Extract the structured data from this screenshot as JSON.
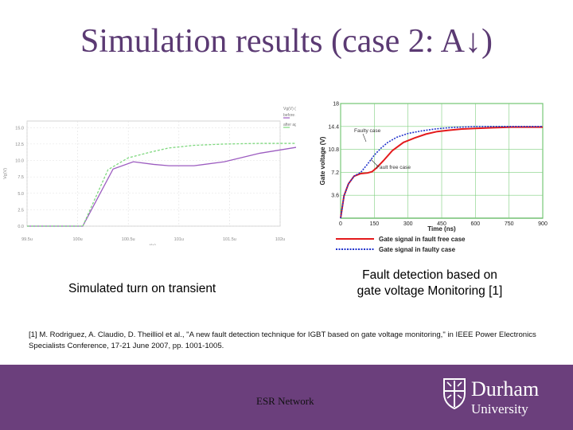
{
  "slide": {
    "title": "Simulation results (case 2: A↓)",
    "caption_left": "Simulated turn on transient",
    "caption_right_1": "Fault detection based on",
    "caption_right_2": "gate voltage Monitoring [1]",
    "reference_1": "[1] M. Rodriguez, A. Claudio, D. Theilliol et al., \"A new fault detection technique for IGBT based on gate voltage monitoring,\" in IEEE Power Electronics",
    "reference_2": "Specialists Conference, 17-21 June 2007, pp. 1001-1005.",
    "footer_text": "ESR Network",
    "logo_name": "Durham",
    "logo_sub": "University"
  },
  "chart_data": [
    {
      "type": "line",
      "xlabel": "t(s)",
      "ylabel": "Vg(V)",
      "xticks": [
        "99.5u",
        "100u",
        "100.5u",
        "101u",
        "101.5u",
        "102u"
      ],
      "yticks": [
        0.0,
        2.5,
        5.0,
        7.5,
        10.0,
        12.5,
        15.0
      ],
      "ylim": [
        0,
        16
      ],
      "grid": true,
      "legend_header": "Vg(V) (V)",
      "series": [
        {
          "name": "before aging",
          "color": "#9c5cc0",
          "x": [
            0,
            0.55,
            1.1,
            1.7,
            2.1,
            2.5,
            2.8,
            3.3,
            3.9,
            4.6,
            5.4,
            6.2,
            7.2,
            8.3,
            9.5
          ],
          "y": [
            0,
            0,
            0,
            8.7,
            9.8,
            9.4,
            9.2,
            9.2,
            9.8,
            11.1,
            12.1,
            12.4,
            12.5,
            12.5,
            12.5
          ]
        },
        {
          "name": "after aging",
          "color": "#7ed87e",
          "x": [
            0,
            0.55,
            1.1,
            1.6,
            2.0,
            2.4,
            2.8,
            3.3,
            3.9,
            4.6,
            5.4,
            6.2,
            7.2,
            8.3
          ],
          "y": [
            0,
            0,
            0,
            8.6,
            10.4,
            11.2,
            11.9,
            12.3,
            12.5,
            12.6,
            12.6,
            12.6,
            12.6,
            12.6
          ]
        }
      ]
    },
    {
      "type": "line",
      "xlabel": "Time (ns)",
      "ylabel": "Gate voltage (V)",
      "xticks": [
        0,
        150,
        300,
        450,
        600,
        750,
        900
      ],
      "yticks": [
        3.6,
        7.2,
        10.8,
        14.4,
        18
      ],
      "xlim": [
        0,
        900
      ],
      "ylim": [
        0,
        18
      ],
      "grid": true,
      "annotations": [
        "Faulty case",
        "Fault free case"
      ],
      "series": [
        {
          "name": "Gate signal in fault free case",
          "color": "#e41a1c",
          "x": [
            0,
            15,
            35,
            60,
            90,
            120,
            140,
            160,
            190,
            230,
            280,
            330,
            380,
            430,
            480,
            540,
            600,
            680,
            760,
            840,
            900
          ],
          "y": [
            0,
            3.5,
            5.4,
            6.6,
            7.0,
            7.1,
            7.3,
            7.9,
            9.0,
            10.6,
            11.9,
            12.6,
            13.2,
            13.6,
            13.8,
            14.0,
            14.1,
            14.2,
            14.3,
            14.3,
            14.3
          ]
        },
        {
          "name": "Gate signal in faulty case",
          "color": "#2233cc",
          "x": [
            0,
            15,
            35,
            60,
            90,
            120,
            150,
            180,
            210,
            250,
            300,
            360,
            420,
            480,
            540,
            600,
            680,
            760,
            840,
            900
          ],
          "y": [
            0,
            3.5,
            5.4,
            6.6,
            7.2,
            8.5,
            9.9,
            11.0,
            11.9,
            12.7,
            13.3,
            13.7,
            14.0,
            14.2,
            14.3,
            14.4,
            14.4,
            14.4,
            14.4,
            14.4
          ]
        }
      ]
    }
  ]
}
